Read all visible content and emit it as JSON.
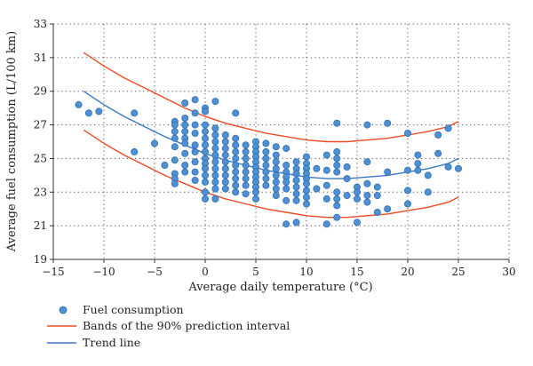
{
  "chart_data": {
    "type": "scatter",
    "xlabel": "Average daily temperature (°C)",
    "ylabel": "Average fuel consumption (L/100 km)",
    "xlim": [
      -15,
      30
    ],
    "ylim": [
      19,
      33
    ],
    "xticks": [
      -15,
      -10,
      -5,
      0,
      5,
      10,
      15,
      20,
      25,
      30
    ],
    "yticks": [
      19,
      21,
      23,
      25,
      27,
      29,
      31,
      33
    ],
    "grid": "dotted",
    "legend_position": "bottom-left",
    "colors": {
      "points": "#4f8fd4",
      "band": "#ee4b24",
      "trend": "#3b78c4"
    },
    "series": [
      {
        "name": "Fuel consumption",
        "kind": "scatter",
        "points": [
          [
            -12.5,
            28.2
          ],
          [
            -11.5,
            27.7
          ],
          [
            -10.5,
            27.8
          ],
          [
            -7,
            27.7
          ],
          [
            -7,
            25.4
          ],
          [
            -5,
            25.9
          ],
          [
            -4,
            24.6
          ],
          [
            -3,
            27.2
          ],
          [
            -3,
            27.0
          ],
          [
            -3,
            26.6
          ],
          [
            -3,
            26.2
          ],
          [
            -3,
            25.7
          ],
          [
            -3,
            24.9
          ],
          [
            -3,
            24.1
          ],
          [
            -3,
            23.8
          ],
          [
            -3,
            23.5
          ],
          [
            -2,
            28.3
          ],
          [
            -2,
            27.4
          ],
          [
            -2,
            27.0
          ],
          [
            -2,
            26.6
          ],
          [
            -2,
            26.2
          ],
          [
            -2,
            25.9
          ],
          [
            -2,
            25.3
          ],
          [
            -2,
            24.6
          ],
          [
            -2,
            24.2
          ],
          [
            -1,
            28.5
          ],
          [
            -1,
            27.7
          ],
          [
            -1,
            27.0
          ],
          [
            -1,
            26.5
          ],
          [
            -1,
            25.8
          ],
          [
            -1,
            25.4
          ],
          [
            -1,
            24.8
          ],
          [
            -1,
            24.2
          ],
          [
            -1,
            23.7
          ],
          [
            0,
            28.0
          ],
          [
            0,
            27.8
          ],
          [
            0,
            27.0
          ],
          [
            0,
            26.6
          ],
          [
            0,
            26.2
          ],
          [
            0,
            25.8
          ],
          [
            0,
            25.4
          ],
          [
            0,
            25.0
          ],
          [
            0,
            24.7
          ],
          [
            0,
            24.4
          ],
          [
            0,
            24.0
          ],
          [
            0,
            23.6
          ],
          [
            0,
            23.0
          ],
          [
            0,
            22.6
          ],
          [
            1,
            28.4
          ],
          [
            1,
            26.8
          ],
          [
            1,
            26.4
          ],
          [
            1,
            26.0
          ],
          [
            1,
            25.6
          ],
          [
            1,
            25.2
          ],
          [
            1,
            24.8
          ],
          [
            1,
            24.4
          ],
          [
            1,
            24.0
          ],
          [
            1,
            23.6
          ],
          [
            1,
            23.2
          ],
          [
            1,
            22.6
          ],
          [
            2,
            26.4
          ],
          [
            2,
            26.0
          ],
          [
            2,
            25.6
          ],
          [
            2,
            25.2
          ],
          [
            2,
            24.8
          ],
          [
            2,
            24.4
          ],
          [
            2,
            24.0
          ],
          [
            2,
            23.6
          ],
          [
            2,
            23.2
          ],
          [
            3,
            27.7
          ],
          [
            3,
            26.2
          ],
          [
            3,
            25.8
          ],
          [
            3,
            25.4
          ],
          [
            3,
            25.0
          ],
          [
            3,
            24.6
          ],
          [
            3,
            24.2
          ],
          [
            3,
            23.8
          ],
          [
            3,
            23.4
          ],
          [
            3,
            23.0
          ],
          [
            4,
            25.8
          ],
          [
            4,
            25.4
          ],
          [
            4,
            25.0
          ],
          [
            4,
            24.6
          ],
          [
            4,
            24.2
          ],
          [
            4,
            23.8
          ],
          [
            4,
            23.4
          ],
          [
            4,
            22.9
          ],
          [
            5,
            26.0
          ],
          [
            5,
            25.7
          ],
          [
            5,
            25.4
          ],
          [
            5,
            25.1
          ],
          [
            5,
            24.8
          ],
          [
            5,
            24.5
          ],
          [
            5,
            24.2
          ],
          [
            5,
            23.9
          ],
          [
            5,
            23.6
          ],
          [
            5,
            23.3
          ],
          [
            5,
            23.0
          ],
          [
            5,
            22.6
          ],
          [
            6,
            25.9
          ],
          [
            6,
            25.4
          ],
          [
            6,
            25.0
          ],
          [
            6,
            24.6
          ],
          [
            6,
            24.2
          ],
          [
            6,
            23.8
          ],
          [
            6,
            23.4
          ],
          [
            7,
            25.7
          ],
          [
            7,
            25.2
          ],
          [
            7,
            24.8
          ],
          [
            7,
            24.4
          ],
          [
            7,
            24.0
          ],
          [
            7,
            23.6
          ],
          [
            7,
            23.2
          ],
          [
            7,
            22.8
          ],
          [
            8,
            25.6
          ],
          [
            8,
            24.6
          ],
          [
            8,
            24.2
          ],
          [
            8,
            23.9
          ],
          [
            8,
            23.6
          ],
          [
            8,
            23.2
          ],
          [
            8,
            22.5
          ],
          [
            8,
            21.1
          ],
          [
            9,
            24.8
          ],
          [
            9,
            24.4
          ],
          [
            9,
            24.1
          ],
          [
            9,
            23.7
          ],
          [
            9,
            23.3
          ],
          [
            9,
            22.9
          ],
          [
            9,
            22.5
          ],
          [
            9,
            21.2
          ],
          [
            10,
            25.1
          ],
          [
            10,
            24.7
          ],
          [
            10,
            24.4
          ],
          [
            10,
            24.1
          ],
          [
            10,
            23.8
          ],
          [
            10,
            23.5
          ],
          [
            10,
            23.1
          ],
          [
            10,
            22.7
          ],
          [
            10,
            22.3
          ],
          [
            11,
            24.4
          ],
          [
            11,
            23.2
          ],
          [
            12,
            25.2
          ],
          [
            12,
            24.3
          ],
          [
            12,
            23.4
          ],
          [
            12,
            22.6
          ],
          [
            12,
            21.1
          ],
          [
            13,
            27.1
          ],
          [
            13,
            25.4
          ],
          [
            13,
            25.0
          ],
          [
            13,
            24.6
          ],
          [
            13,
            24.2
          ],
          [
            13,
            23.0
          ],
          [
            13,
            22.6
          ],
          [
            13,
            22.2
          ],
          [
            13,
            21.5
          ],
          [
            14,
            24.5
          ],
          [
            14,
            23.8
          ],
          [
            14,
            22.8
          ],
          [
            15,
            23.3
          ],
          [
            15,
            23.0
          ],
          [
            15,
            22.6
          ],
          [
            15,
            21.2
          ],
          [
            16,
            27.0
          ],
          [
            16,
            24.8
          ],
          [
            16,
            23.5
          ],
          [
            16,
            22.8
          ],
          [
            16,
            22.4
          ],
          [
            17,
            23.3
          ],
          [
            17,
            22.8
          ],
          [
            17,
            21.8
          ],
          [
            18,
            27.1
          ],
          [
            18,
            24.2
          ],
          [
            18,
            22.0
          ],
          [
            20,
            26.5
          ],
          [
            20,
            24.3
          ],
          [
            20,
            23.1
          ],
          [
            20,
            22.3
          ],
          [
            21,
            25.2
          ],
          [
            21,
            24.7
          ],
          [
            21,
            24.3
          ],
          [
            22,
            24.0
          ],
          [
            22,
            23.0
          ],
          [
            23,
            26.4
          ],
          [
            23,
            25.3
          ],
          [
            24,
            26.8
          ],
          [
            24,
            24.5
          ],
          [
            25,
            24.4
          ]
        ]
      },
      {
        "name": "Bands of the 90% prediction interval",
        "kind": "line",
        "x": [
          -12,
          -10,
          -8,
          -6,
          -4,
          -2,
          0,
          2,
          4,
          6,
          8,
          10,
          12,
          14,
          16,
          18,
          20,
          22,
          24,
          25
        ],
        "upper": [
          31.3,
          30.5,
          29.8,
          29.2,
          28.6,
          28.0,
          27.5,
          27.1,
          26.8,
          26.5,
          26.3,
          26.1,
          26.0,
          26.0,
          26.1,
          26.2,
          26.4,
          26.6,
          26.9,
          27.2
        ],
        "lower": [
          26.7,
          25.9,
          25.2,
          24.6,
          24.0,
          23.5,
          23.0,
          22.6,
          22.3,
          22.0,
          21.8,
          21.6,
          21.5,
          21.5,
          21.6,
          21.7,
          21.9,
          22.1,
          22.4,
          22.7
        ]
      },
      {
        "name": "Trend line",
        "kind": "line",
        "x": [
          -12,
          -10,
          -8,
          -6,
          -4,
          -2,
          0,
          2,
          4,
          6,
          8,
          10,
          12,
          14,
          16,
          18,
          20,
          22,
          24,
          25
        ],
        "y": [
          29.0,
          28.2,
          27.5,
          26.9,
          26.3,
          25.8,
          25.3,
          24.9,
          24.6,
          24.3,
          24.1,
          23.9,
          23.8,
          23.8,
          23.9,
          24.0,
          24.2,
          24.4,
          24.7,
          25.0
        ]
      }
    ]
  }
}
